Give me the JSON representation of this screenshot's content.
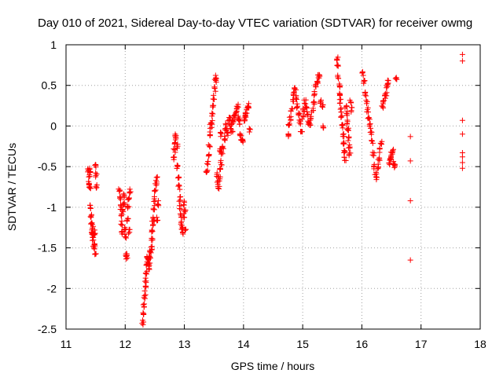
{
  "chart_data": {
    "type": "scatter",
    "title": "Day 010 of 2021, Sidereal Day-to-day VTEC variation (SDTVAR) for receiver owmg",
    "xlabel": "GPS time / hours",
    "ylabel": "SDTVAR / TECUs",
    "xlim": [
      11,
      18
    ],
    "ylim": [
      -2.5,
      1
    ],
    "x_ticks": [
      11,
      12,
      13,
      14,
      15,
      16,
      17,
      18
    ],
    "x_tick_labels": [
      "11",
      "12",
      "13",
      "14",
      "15",
      "16",
      "17",
      "18"
    ],
    "y_ticks": [
      -2.5,
      -2,
      -1.5,
      -1,
      -0.5,
      0,
      0.5,
      1
    ],
    "y_tick_labels": [
      "-2.5",
      "-2",
      "-1.5",
      "-1",
      "-0.5",
      "0",
      "0.5",
      "1"
    ],
    "grid": true,
    "marker": "plus",
    "series_color": "#ff0000",
    "segments": [
      {
        "x0": 11.38,
        "x1": 11.52,
        "y": [
          -0.55,
          -0.7,
          -0.6,
          -0.75,
          -0.55,
          -1.0,
          -1.1,
          -1.2,
          -1.3,
          -1.35,
          -1.25,
          -1.4,
          -1.5,
          -1.35,
          -1.3,
          -1.45,
          -1.55,
          -0.5,
          -0.6,
          -0.75
        ]
      },
      {
        "x0": 11.9,
        "x1": 12.08,
        "y": [
          -0.8,
          -0.9,
          -1.0,
          -1.1,
          -1.2,
          -1.3,
          -1.05,
          -0.95,
          -0.85,
          -1.25,
          -1.35,
          -1.6,
          -1.62,
          -1.15,
          -1.0,
          -0.9,
          -1.3,
          -0.8
        ]
      },
      {
        "x0": 12.3,
        "x1": 12.55,
        "y": [
          -2.42,
          -2.3,
          -2.2,
          -2.1,
          -2.0,
          -1.9,
          -1.8,
          -1.7,
          -1.6,
          -1.65,
          -1.75,
          -1.7,
          -1.6,
          -1.55,
          -1.5,
          -1.4,
          -1.3,
          -1.2,
          -1.15,
          -1.0,
          -0.9,
          -0.8,
          -0.7,
          -0.65,
          -1.15,
          -0.95
        ]
      },
      {
        "x0": 12.82,
        "x1": 13.02,
        "y": [
          -0.4,
          -0.3,
          -0.2,
          -0.1,
          -0.15,
          -0.25,
          -0.5,
          -0.65,
          -0.75,
          -0.9,
          -1.0,
          -1.1,
          -1.2,
          -1.25,
          -1.3,
          -1.1,
          -0.95,
          -1.05,
          -1.3
        ]
      },
      {
        "x0": 13.38,
        "x1": 13.62,
        "y": [
          -0.55,
          -0.45,
          -0.35,
          -0.25,
          -0.1,
          0.0,
          0.05,
          0.15,
          0.25,
          0.35,
          0.45,
          0.55,
          0.6,
          -0.6,
          -0.7,
          -0.75,
          -0.65,
          -0.3,
          -0.1
        ]
      },
      {
        "x0": 13.6,
        "x1": 14.1,
        "y": [
          -0.55,
          -0.45,
          -0.35,
          -0.25,
          -0.15,
          -0.05,
          0.0,
          -0.1,
          0.05,
          0.1,
          0.0,
          -0.05,
          0.05,
          0.1,
          0.15,
          0.2,
          0.25,
          0.1,
          0.05,
          -0.1,
          -0.15,
          -0.2,
          0.08,
          0.12,
          0.18,
          0.22,
          0.25,
          -0.05
        ]
      },
      {
        "x0": 14.75,
        "x1": 15.35,
        "y": [
          -0.1,
          0.0,
          0.1,
          0.2,
          0.3,
          0.4,
          0.45,
          0.35,
          0.25,
          0.15,
          0.05,
          -0.05,
          0.1,
          0.2,
          0.3,
          0.25,
          0.15,
          0.05,
          0.0,
          0.1,
          0.2,
          0.3,
          0.4,
          0.5,
          0.55,
          0.6,
          0.62,
          0.3,
          0.25,
          0.0
        ]
      },
      {
        "x0": 15.58,
        "x1": 15.82,
        "y": [
          0.82,
          0.75,
          0.6,
          0.5,
          0.4,
          0.3,
          0.2,
          0.1,
          0.0,
          -0.1,
          -0.2,
          -0.3,
          -0.4,
          0.25,
          0.15,
          0.05,
          -0.05,
          -0.15,
          -0.25,
          -0.35,
          0.3,
          0.2
        ]
      },
      {
        "x0": 16.02,
        "x1": 16.58,
        "y": [
          0.65,
          0.55,
          0.4,
          0.3,
          0.2,
          0.1,
          0.0,
          -0.1,
          -0.2,
          -0.35,
          -0.5,
          -0.6,
          -0.65,
          -0.5,
          -0.4,
          -0.3,
          -0.2,
          0.25,
          0.3,
          0.35,
          0.4,
          0.5,
          0.55,
          -0.45,
          -0.4,
          -0.35,
          -0.3,
          -0.45,
          -0.5,
          0.58
        ]
      }
    ],
    "isolated_points": [
      {
        "x": 16.82,
        "y": -0.13
      },
      {
        "x": 16.82,
        "y": -0.43
      },
      {
        "x": 16.82,
        "y": -0.92
      },
      {
        "x": 16.82,
        "y": -1.65
      },
      {
        "x": 17.7,
        "y": 0.88
      },
      {
        "x": 17.7,
        "y": 0.8
      },
      {
        "x": 17.7,
        "y": 0.07
      },
      {
        "x": 17.7,
        "y": -0.1
      },
      {
        "x": 17.7,
        "y": -0.33
      },
      {
        "x": 17.7,
        "y": -0.38
      },
      {
        "x": 17.7,
        "y": -0.45
      },
      {
        "x": 17.7,
        "y": -0.52
      }
    ]
  }
}
